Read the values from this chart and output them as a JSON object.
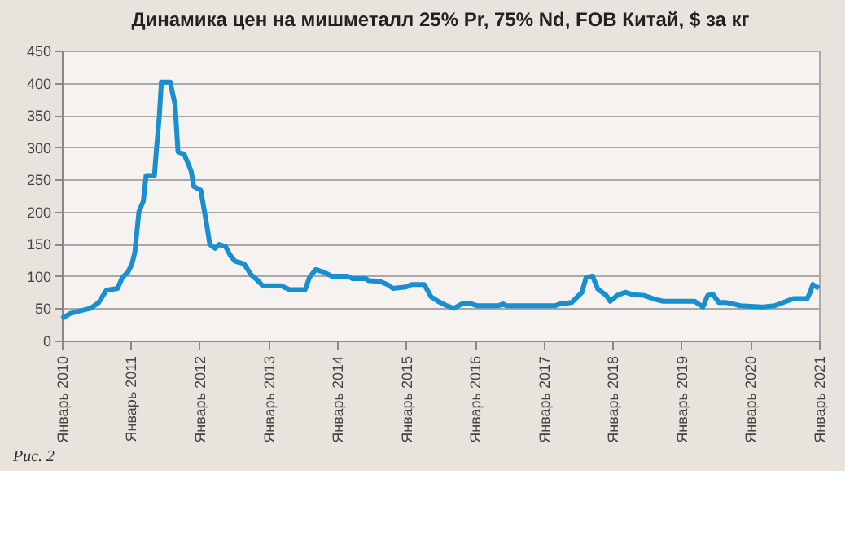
{
  "chart_data": {
    "type": "line",
    "title": "Динамика цен на мишметалл  25% Pr, 75% Nd, FOB  Китай, $ за кг",
    "x": [
      "2010-01-01",
      "2010-02-14",
      "2010-03-24",
      "2010-06-02",
      "2010-07-15",
      "2010-08-25",
      "2010-10-23",
      "2010-11-18",
      "2010-12-17",
      "2011-01-08",
      "2011-01-23",
      "2011-02-14",
      "2011-03-09",
      "2011-03-24",
      "2011-05-07",
      "2011-05-18",
      "2011-06-02",
      "2011-06-13",
      "2011-07-30",
      "2011-08-25",
      "2011-09-09",
      "2011-10-12",
      "2011-11-18",
      "2011-12-02",
      "2012-01-08",
      "2012-01-23",
      "2012-02-14",
      "2012-02-25",
      "2012-03-24",
      "2012-04-15",
      "2012-05-18",
      "2012-06-13",
      "2012-07-08",
      "2012-08-25",
      "2012-10-01",
      "2012-10-30",
      "2012-12-02",
      "2013-03-09",
      "2013-04-23",
      "2013-07-15",
      "2013-08-07",
      "2013-09-09",
      "2013-10-23",
      "2013-12-02",
      "2014-02-25",
      "2014-03-24",
      "2014-06-02",
      "2014-06-17",
      "2014-08-14",
      "2014-09-24",
      "2014-10-23",
      "2015-01-01",
      "2015-01-30",
      "2015-04-08",
      "2015-05-14",
      "2015-06-20",
      "2015-07-30",
      "2015-09-13",
      "2015-10-26",
      "2015-12-13",
      "2016-01-15",
      "2016-05-07",
      "2016-05-29",
      "2016-06-17",
      "2017-03-02",
      "2017-03-27",
      "2017-05-29",
      "2017-07-23",
      "2017-08-14",
      "2017-09-17",
      "2017-10-15",
      "2017-11-29",
      "2017-12-20",
      "2018-01-26",
      "2018-03-09",
      "2018-04-23",
      "2018-06-17",
      "2018-08-14",
      "2018-09-27",
      "2019-03-13",
      "2019-04-26",
      "2019-05-21",
      "2019-06-17",
      "2019-07-19",
      "2019-08-29",
      "2019-10-12",
      "2019-11-11",
      "2020-03-02",
      "2020-05-11",
      "2020-06-24",
      "2020-08-18",
      "2020-10-30",
      "2020-11-14",
      "2020-11-29",
      "2021-01-01"
    ],
    "series": [
      {
        "color": "#1a8fd0",
        "values": [
          34,
          42,
          45,
          50,
          59,
          78,
          81,
          98,
          106,
          119,
          137,
          200,
          216,
          256,
          256,
          297,
          348,
          401,
          401,
          365,
          293,
          289,
          263,
          239,
          233,
          208,
          170,
          149,
          143,
          149,
          146,
          132,
          123,
          119,
          102,
          95,
          85,
          85,
          79,
          79,
          98,
          110,
          106,
          100,
          100,
          96,
          96,
          93,
          92,
          87,
          81,
          83,
          87,
          87,
          68,
          61,
          55,
          50,
          57,
          57,
          54,
          54,
          57,
          54,
          54,
          57,
          59,
          75,
          98,
          100,
          80,
          70,
          61,
          70,
          75,
          71,
          70,
          64,
          61,
          61,
          52,
          70,
          72,
          59,
          59,
          56,
          54,
          52,
          54,
          59,
          65,
          65,
          74,
          87,
          81
        ]
      }
    ],
    "xlim": [
      "2010-01-01",
      "2021-01-01"
    ],
    "xticks": [
      {
        "value": "2010-01",
        "label": "Январь 2010"
      },
      {
        "value": "2011-01",
        "label": "Январь 2011"
      },
      {
        "value": "2012-01",
        "label": "Январь 2012"
      },
      {
        "value": "2013-01",
        "label": "Январь 2013"
      },
      {
        "value": "2014-01",
        "label": "Январь 2014"
      },
      {
        "value": "2015-01",
        "label": "Январь 2015"
      },
      {
        "value": "2016-01",
        "label": "Январь 2016"
      },
      {
        "value": "2017-01",
        "label": "Январь 2017"
      },
      {
        "value": "2018-01",
        "label": "Январь 2018"
      },
      {
        "value": "2019-01",
        "label": "Январь 2019"
      },
      {
        "value": "2020-01",
        "label": "Январь 2020"
      },
      {
        "value": "2021-01",
        "label": "Январь 2021"
      }
    ],
    "ylim": [
      0,
      450
    ],
    "yticks": [
      0,
      50,
      100,
      150,
      200,
      250,
      300,
      350,
      400,
      450
    ],
    "grid": "y",
    "marker": "none",
    "line_style": "solid",
    "annotations": [
      "Рис. 2"
    ]
  }
}
